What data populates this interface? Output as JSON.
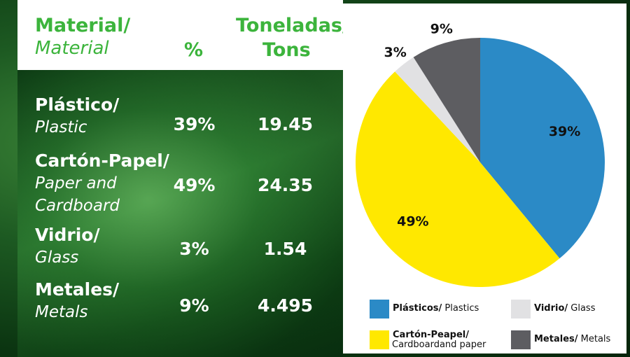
{
  "table": {
    "header": {
      "material_es": "Material/",
      "material_en": "Material",
      "percent": "%",
      "tons_es": "Toneladas/",
      "tons_en": "Tons"
    },
    "rows": [
      {
        "es": "Plástico/",
        "en": "Plastic",
        "percent": "39%",
        "tons": "19.45"
      },
      {
        "es": "Cartón-Papel/",
        "en": "Paper and Cardboard",
        "percent": "49%",
        "tons": "24.35"
      },
      {
        "es": "Vidrio/",
        "en": "Glass",
        "percent": "3%",
        "tons": "1.54"
      },
      {
        "es": "Metales/",
        "en": "Metals",
        "percent": "9%",
        "tons": "4.495"
      }
    ]
  },
  "chart_data": {
    "type": "pie",
    "categories": [
      "Plásticos/ Plastics",
      "Cartón-Peapel/ Cardboardand paper",
      "Vidrio/ Glass",
      "Metales/ Metals"
    ],
    "values": [
      39,
      49,
      3,
      9
    ],
    "value_labels": [
      "39%",
      "49%",
      "3%",
      "9%"
    ],
    "colors": [
      "#2b8ac6",
      "#ffe800",
      "#e1e1e3",
      "#5d5d61"
    ]
  }
}
